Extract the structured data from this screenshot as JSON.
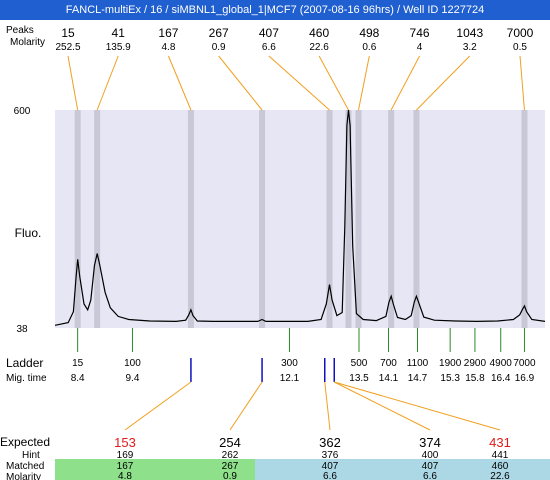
{
  "window_title": "FANCL-multiEx / 16 / siMBNL1_global_1|MCF7 (2007-08-16 96hrs) / Well ID 1227724",
  "labels": {
    "peaks": "Peaks",
    "molarity": "Molarity",
    "fluo": "Fluo.",
    "ladder": "Ladder",
    "mig_time": "Mig. time",
    "expected": "Expected",
    "hint": "Hint",
    "matched": "Matched",
    "molarity_bottom": "Molarity"
  },
  "colors": {
    "titlebar": "#1f5fd0",
    "plot_bg": "#e6e6f5",
    "peak_band": "#c8c8d6",
    "orange_line": "#f0a020",
    "green_line": "#2a8a2a",
    "blue_line": "#1010c0",
    "expected_red": "#e41a1a",
    "matched_green": "#8fe08a",
    "matched_blue": "#acd8e6"
  },
  "chart_data": {
    "type": "line",
    "y_axis": {
      "min": 38,
      "max": 600,
      "ticks": [
        "600",
        "38"
      ],
      "label": "Fluo."
    },
    "x_axis": {
      "label": "Mig. time",
      "min": 8.4,
      "max": 16.9
    },
    "top_peaks": [
      {
        "size": "15",
        "molarity": "252.5",
        "x": 8.43
      },
      {
        "size": "41",
        "molarity": "135.9",
        "x": 8.8
      },
      {
        "size": "167",
        "molarity": "4.8",
        "x": 10.58
      },
      {
        "size": "267",
        "molarity": "0.9",
        "x": 11.93
      },
      {
        "size": "407",
        "molarity": "6.6",
        "x": 13.21
      },
      {
        "size": "460",
        "molarity": "22.6",
        "x": 13.57
      },
      {
        "size": "498",
        "molarity": "0.6",
        "x": 13.76
      },
      {
        "size": "746",
        "molarity": "4",
        "x": 14.38
      },
      {
        "size": "1043",
        "molarity": "3.2",
        "x": 14.86
      },
      {
        "size": "7000",
        "molarity": "0.5",
        "x": 16.91
      }
    ],
    "ladder": [
      {
        "size": "15",
        "time": "8.4",
        "x": 8.43
      },
      {
        "size": "100",
        "time": "9.4",
        "x": 9.47
      },
      {
        "size": "300",
        "time": "12.1",
        "x": 12.45
      },
      {
        "size": "500",
        "time": "13.5",
        "x": 13.77
      },
      {
        "size": "700",
        "time": "14.1",
        "x": 14.33
      },
      {
        "size": "1100",
        "time": "14.7",
        "x": 14.88
      },
      {
        "size": "1900",
        "time": "15.3",
        "x": 15.5
      },
      {
        "size": "2900",
        "time": "15.8",
        "x": 15.97
      },
      {
        "size": "4900",
        "time": "16.4",
        "x": 16.46
      },
      {
        "size": "7000",
        "time": "16.9",
        "x": 16.91
      }
    ],
    "blue_markers": [
      10.58,
      11.93,
      13.12,
      13.3
    ],
    "trace": [
      [
        8.0,
        45
      ],
      [
        8.25,
        52
      ],
      [
        8.35,
        80
      ],
      [
        8.4,
        170
      ],
      [
        8.43,
        215
      ],
      [
        8.47,
        170
      ],
      [
        8.55,
        100
      ],
      [
        8.62,
        85
      ],
      [
        8.68,
        110
      ],
      [
        8.75,
        200
      ],
      [
        8.8,
        230
      ],
      [
        8.85,
        200
      ],
      [
        8.95,
        130
      ],
      [
        9.05,
        90
      ],
      [
        9.2,
        68
      ],
      [
        9.4,
        60
      ],
      [
        9.8,
        56
      ],
      [
        10.3,
        55
      ],
      [
        10.48,
        58
      ],
      [
        10.54,
        72
      ],
      [
        10.58,
        85
      ],
      [
        10.62,
        70
      ],
      [
        10.7,
        56
      ],
      [
        11.0,
        55
      ],
      [
        11.85,
        55
      ],
      [
        11.93,
        60
      ],
      [
        12.0,
        55
      ],
      [
        12.8,
        55
      ],
      [
        13.05,
        60
      ],
      [
        13.15,
        100
      ],
      [
        13.21,
        150
      ],
      [
        13.26,
        110
      ],
      [
        13.35,
        70
      ],
      [
        13.45,
        78
      ],
      [
        13.5,
        300
      ],
      [
        13.54,
        560
      ],
      [
        13.57,
        600
      ],
      [
        13.6,
        560
      ],
      [
        13.65,
        250
      ],
      [
        13.72,
        75
      ],
      [
        13.85,
        60
      ],
      [
        14.1,
        57
      ],
      [
        14.28,
        68
      ],
      [
        14.34,
        105
      ],
      [
        14.38,
        120
      ],
      [
        14.42,
        100
      ],
      [
        14.5,
        65
      ],
      [
        14.65,
        60
      ],
      [
        14.76,
        70
      ],
      [
        14.82,
        105
      ],
      [
        14.86,
        120
      ],
      [
        14.9,
        105
      ],
      [
        15.0,
        66
      ],
      [
        15.2,
        58
      ],
      [
        15.6,
        56
      ],
      [
        16.0,
        55
      ],
      [
        16.4,
        56
      ],
      [
        16.7,
        60
      ],
      [
        16.82,
        72
      ],
      [
        16.88,
        88
      ],
      [
        16.91,
        95
      ],
      [
        16.95,
        80
      ],
      [
        17.05,
        60
      ],
      [
        17.3,
        55
      ]
    ],
    "matches": [
      {
        "expected": "153",
        "hint": "169",
        "matched": "167",
        "molarity": "4.8",
        "expected_color": "red",
        "row_color": "green",
        "peak_x": 10.58
      },
      {
        "expected": "254",
        "hint": "262",
        "matched": "267",
        "molarity": "0.9",
        "expected_color": "black",
        "row_color": "green",
        "peak_x": 11.93
      },
      {
        "expected": "362",
        "hint": "376",
        "matched": "407",
        "molarity": "6.6",
        "expected_color": "black",
        "row_color": "blue",
        "peak_x": 13.12
      },
      {
        "expected": "374",
        "hint": "400",
        "matched": "407",
        "molarity": "6.6",
        "expected_color": "black",
        "row_color": "blue",
        "peak_x": 13.3
      },
      {
        "expected": "431",
        "hint": "441",
        "matched": "460",
        "molarity": "22.6",
        "expected_color": "red",
        "row_color": "blue",
        "peak_x": 13.3
      }
    ]
  }
}
